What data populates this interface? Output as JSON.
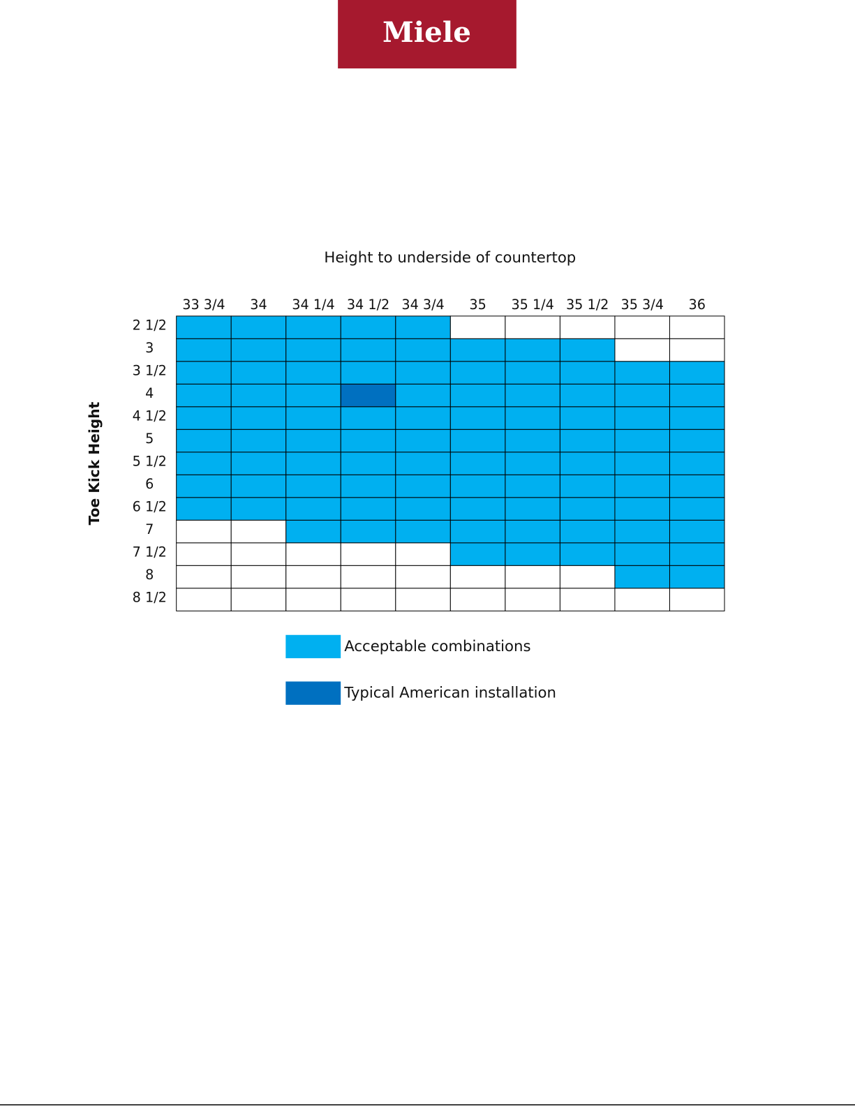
{
  "logo": {
    "text": "Miele",
    "color": "#a6192e"
  },
  "table": {
    "title": "Height to underside of countertop",
    "row_axis_label": "Toe Kick Height",
    "columns": [
      "33 3/4",
      "34",
      "34 1/4",
      "34 1/2",
      "34 3/4",
      "35",
      "35 1/4",
      "35 1/2",
      "35 3/4",
      "36"
    ],
    "rows": [
      "2 1/2",
      "3",
      "3 1/2",
      "4",
      "4 1/2",
      "5",
      "5 1/2",
      "6",
      "6 1/2",
      "7",
      "7 1/2",
      "8",
      "8 1/2"
    ],
    "cells": [
      [
        "#00b0f0",
        "#00b0f0",
        "#00b0f0",
        "#00b0f0",
        "#00b0f0",
        "#ffffff",
        "#ffffff",
        "#ffffff",
        "#ffffff",
        "#ffffff"
      ],
      [
        "#00b0f0",
        "#00b0f0",
        "#00b0f0",
        "#00b0f0",
        "#00b0f0",
        "#00b0f0",
        "#00b0f0",
        "#00b0f0",
        "#ffffff",
        "#ffffff"
      ],
      [
        "#00b0f0",
        "#00b0f0",
        "#00b0f0",
        "#00b0f0",
        "#00b0f0",
        "#00b0f0",
        "#00b0f0",
        "#00b0f0",
        "#00b0f0",
        "#00b0f0"
      ],
      [
        "#00b0f0",
        "#00b0f0",
        "#00b0f0",
        "#0070c0",
        "#00b0f0",
        "#00b0f0",
        "#00b0f0",
        "#00b0f0",
        "#00b0f0",
        "#00b0f0"
      ],
      [
        "#00b0f0",
        "#00b0f0",
        "#00b0f0",
        "#00b0f0",
        "#00b0f0",
        "#00b0f0",
        "#00b0f0",
        "#00b0f0",
        "#00b0f0",
        "#00b0f0"
      ],
      [
        "#00b0f0",
        "#00b0f0",
        "#00b0f0",
        "#00b0f0",
        "#00b0f0",
        "#00b0f0",
        "#00b0f0",
        "#00b0f0",
        "#00b0f0",
        "#00b0f0"
      ],
      [
        "#00b0f0",
        "#00b0f0",
        "#00b0f0",
        "#00b0f0",
        "#00b0f0",
        "#00b0f0",
        "#00b0f0",
        "#00b0f0",
        "#00b0f0",
        "#00b0f0"
      ],
      [
        "#00b0f0",
        "#00b0f0",
        "#00b0f0",
        "#00b0f0",
        "#00b0f0",
        "#00b0f0",
        "#00b0f0",
        "#00b0f0",
        "#00b0f0",
        "#00b0f0"
      ],
      [
        "#00b0f0",
        "#00b0f0",
        "#00b0f0",
        "#00b0f0",
        "#00b0f0",
        "#00b0f0",
        "#00b0f0",
        "#00b0f0",
        "#00b0f0",
        "#00b0f0"
      ],
      [
        "#ffffff",
        "#ffffff",
        "#00b0f0",
        "#00b0f0",
        "#00b0f0",
        "#00b0f0",
        "#00b0f0",
        "#00b0f0",
        "#00b0f0",
        "#00b0f0"
      ],
      [
        "#ffffff",
        "#ffffff",
        "#ffffff",
        "#ffffff",
        "#ffffff",
        "#00b0f0",
        "#00b0f0",
        "#00b0f0",
        "#00b0f0",
        "#00b0f0"
      ],
      [
        "#ffffff",
        "#ffffff",
        "#ffffff",
        "#ffffff",
        "#ffffff",
        "#ffffff",
        "#ffffff",
        "#ffffff",
        "#00b0f0",
        "#00b0f0"
      ],
      [
        "#ffffff",
        "#ffffff",
        "#ffffff",
        "#ffffff",
        "#ffffff",
        "#ffffff",
        "#ffffff",
        "#ffffff",
        "#ffffff",
        "#ffffff"
      ]
    ],
    "legend": [
      {
        "label": "Acceptable combinations",
        "color": "#00b0f0"
      },
      {
        "label": "Typical American installation",
        "color": "#0070c0"
      }
    ]
  }
}
